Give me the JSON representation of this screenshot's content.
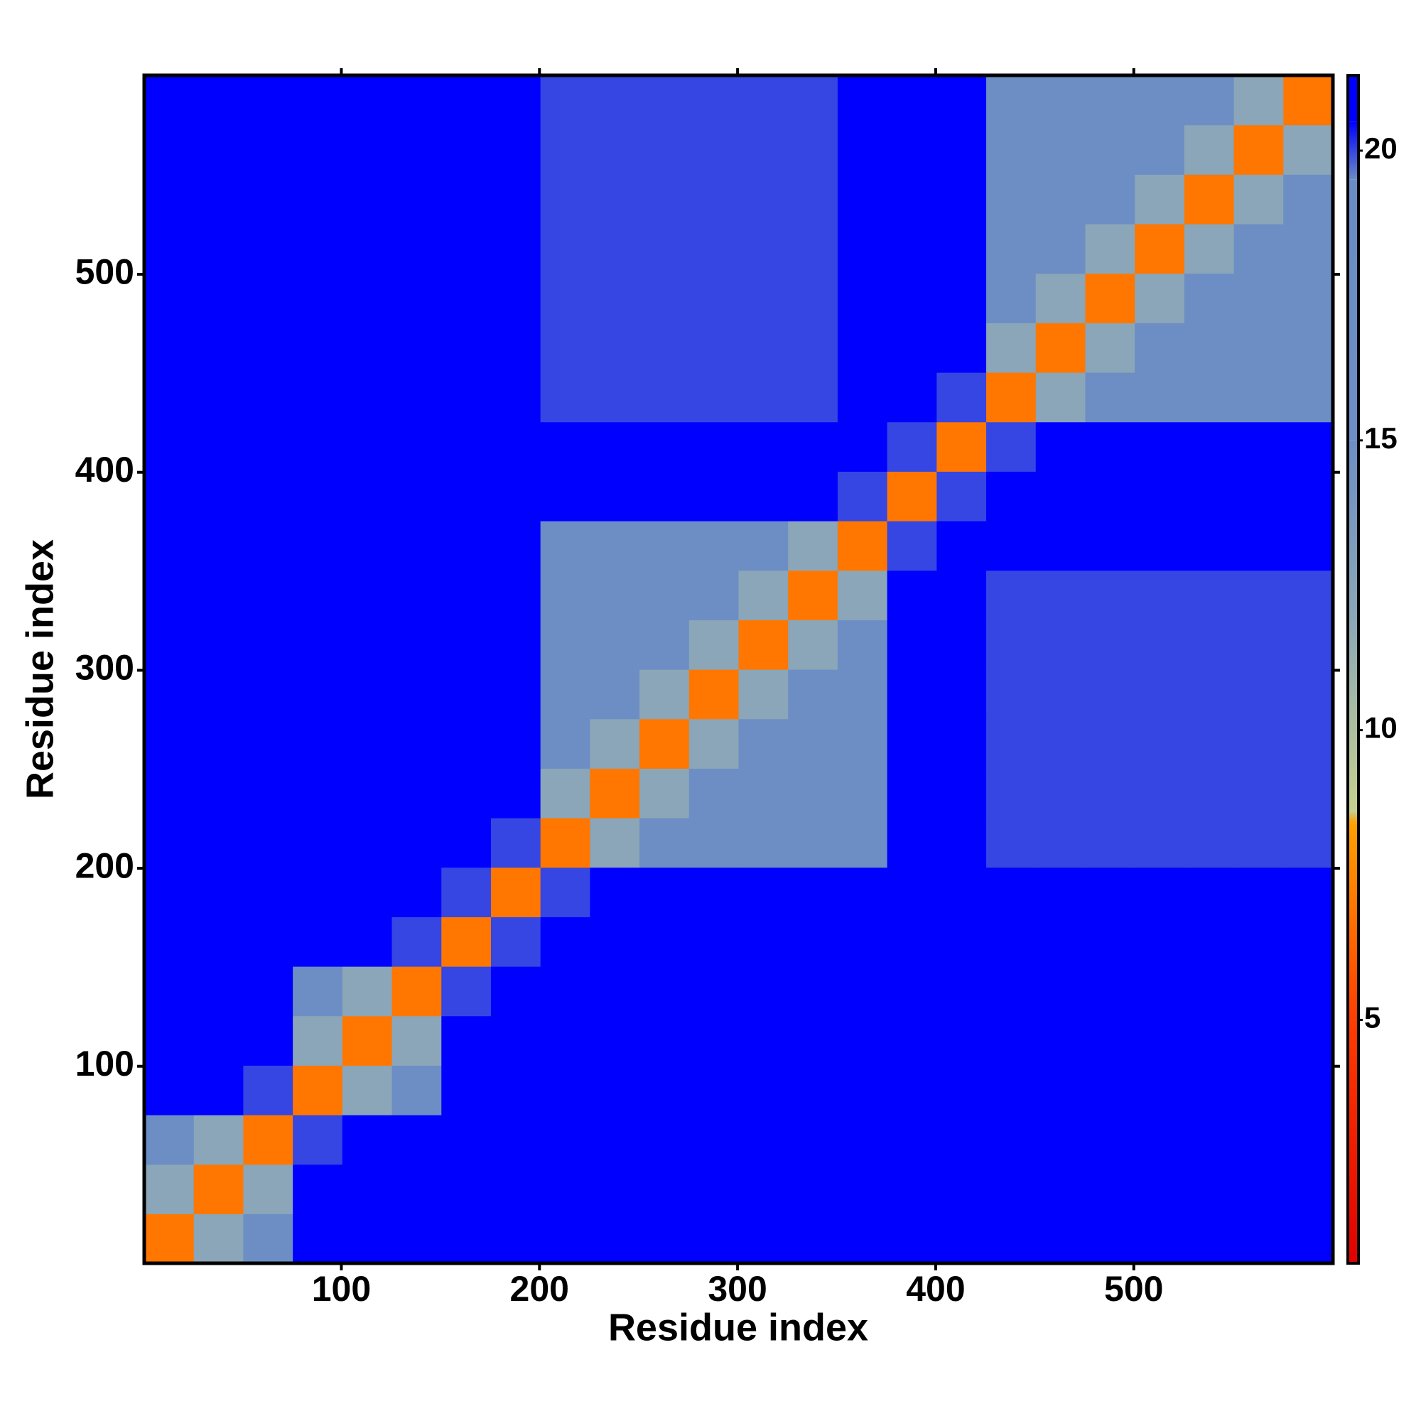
{
  "chart_data": {
    "type": "heatmap",
    "xlabel": "Residue index",
    "ylabel": "Residue index",
    "bins": [
      0.5,
      25.5,
      50.5,
      75.5,
      100.5,
      125.5,
      150.5,
      175.5,
      200.5,
      225.5,
      250.5,
      275.5,
      300.5,
      325.5,
      350.5,
      375.5,
      400.5,
      425.5,
      450.5,
      475.5,
      500.5,
      525.5,
      550.5,
      575.5,
      600.5
    ],
    "xlim": [
      0.5,
      600.5
    ],
    "ylim": [
      0.5,
      600.5
    ],
    "xticks": [
      100,
      200,
      300,
      400,
      500
    ],
    "yticks": [
      100,
      200,
      300,
      400,
      500
    ],
    "clim": [
      0.8,
      21.3
    ],
    "cticks": [
      5,
      10,
      15,
      20
    ],
    "colorscale": [
      [
        0.8,
        "#e00000"
      ],
      [
        5,
        "#ff3c00"
      ],
      [
        8.4,
        "#ffa000"
      ],
      [
        8.6,
        "#c6d08e"
      ],
      [
        12,
        "#8aa6b8"
      ],
      [
        15,
        "#6c8ec4"
      ],
      [
        19.5,
        "#6a8cc6"
      ],
      [
        20.5,
        "#0000ff"
      ],
      [
        21.3,
        "#0000ff"
      ]
    ],
    "values": [
      [
        7,
        12,
        15,
        21,
        21,
        21,
        21,
        21,
        21,
        21,
        21,
        21,
        21,
        21,
        21,
        21,
        21,
        21,
        21,
        21,
        21,
        21,
        21,
        21
      ],
      [
        12,
        7,
        12,
        21,
        21,
        21,
        21,
        21,
        21,
        21,
        21,
        21,
        21,
        21,
        21,
        21,
        21,
        21,
        21,
        21,
        21,
        21,
        21,
        21
      ],
      [
        15,
        12,
        7,
        20,
        21,
        21,
        21,
        21,
        21,
        21,
        21,
        21,
        21,
        21,
        21,
        21,
        21,
        21,
        21,
        21,
        21,
        21,
        21,
        21
      ],
      [
        21,
        21,
        20,
        7,
        12,
        15,
        21,
        21,
        21,
        21,
        21,
        21,
        21,
        21,
        21,
        21,
        21,
        21,
        21,
        21,
        21,
        21,
        21,
        21
      ],
      [
        21,
        21,
        21,
        12,
        7,
        12,
        21,
        21,
        21,
        21,
        21,
        21,
        21,
        21,
        21,
        21,
        21,
        21,
        21,
        21,
        21,
        21,
        21,
        21
      ],
      [
        21,
        21,
        21,
        15,
        12,
        7,
        20,
        21,
        21,
        21,
        21,
        21,
        21,
        21,
        21,
        21,
        21,
        21,
        21,
        21,
        21,
        21,
        21,
        21
      ],
      [
        21,
        21,
        21,
        21,
        21,
        20,
        7,
        20,
        21,
        21,
        21,
        21,
        21,
        21,
        21,
        21,
        21,
        21,
        21,
        21,
        21,
        21,
        21,
        21
      ],
      [
        21,
        21,
        21,
        21,
        21,
        21,
        20,
        7,
        20,
        21,
        21,
        21,
        21,
        21,
        21,
        21,
        21,
        21,
        21,
        21,
        21,
        21,
        21,
        21
      ],
      [
        21,
        21,
        21,
        21,
        21,
        21,
        21,
        20,
        7,
        12,
        15,
        15,
        15,
        15,
        15,
        21,
        21,
        20,
        20,
        20,
        20,
        20,
        20,
        20
      ],
      [
        21,
        21,
        21,
        21,
        21,
        21,
        21,
        21,
        12,
        7,
        12,
        15,
        15,
        15,
        15,
        21,
        21,
        20,
        20,
        20,
        20,
        20,
        20,
        20
      ],
      [
        21,
        21,
        21,
        21,
        21,
        21,
        21,
        21,
        15,
        12,
        7,
        12,
        15,
        15,
        15,
        21,
        21,
        20,
        20,
        20,
        20,
        20,
        20,
        20
      ],
      [
        21,
        21,
        21,
        21,
        21,
        21,
        21,
        21,
        15,
        15,
        12,
        7,
        12,
        15,
        15,
        21,
        21,
        20,
        20,
        20,
        20,
        20,
        20,
        20
      ],
      [
        21,
        21,
        21,
        21,
        21,
        21,
        21,
        21,
        15,
        15,
        15,
        12,
        7,
        12,
        15,
        21,
        21,
        20,
        20,
        20,
        20,
        20,
        20,
        20
      ],
      [
        21,
        21,
        21,
        21,
        21,
        21,
        21,
        21,
        15,
        15,
        15,
        15,
        12,
        7,
        12,
        21,
        21,
        20,
        20,
        20,
        20,
        20,
        20,
        20
      ],
      [
        21,
        21,
        21,
        21,
        21,
        21,
        21,
        21,
        15,
        15,
        15,
        15,
        15,
        12,
        7,
        20,
        21,
        21,
        21,
        21,
        21,
        21,
        21,
        21
      ],
      [
        21,
        21,
        21,
        21,
        21,
        21,
        21,
        21,
        21,
        21,
        21,
        21,
        21,
        21,
        20,
        7,
        20,
        21,
        21,
        21,
        21,
        21,
        21,
        21
      ],
      [
        21,
        21,
        21,
        21,
        21,
        21,
        21,
        21,
        21,
        21,
        21,
        21,
        21,
        21,
        21,
        20,
        7,
        20,
        21,
        21,
        21,
        21,
        21,
        21
      ],
      [
        21,
        21,
        21,
        21,
        21,
        21,
        21,
        21,
        20,
        20,
        20,
        20,
        20,
        20,
        21,
        21,
        20,
        7,
        12,
        15,
        15,
        15,
        15,
        15
      ],
      [
        21,
        21,
        21,
        21,
        21,
        21,
        21,
        21,
        20,
        20,
        20,
        20,
        20,
        20,
        21,
        21,
        21,
        12,
        7,
        12,
        15,
        15,
        15,
        15
      ],
      [
        21,
        21,
        21,
        21,
        21,
        21,
        21,
        21,
        20,
        20,
        20,
        20,
        20,
        20,
        21,
        21,
        21,
        15,
        12,
        7,
        12,
        15,
        15,
        15
      ],
      [
        21,
        21,
        21,
        21,
        21,
        21,
        21,
        21,
        20,
        20,
        20,
        20,
        20,
        20,
        21,
        21,
        21,
        15,
        15,
        12,
        7,
        12,
        15,
        15
      ],
      [
        21,
        21,
        21,
        21,
        21,
        21,
        21,
        21,
        20,
        20,
        20,
        20,
        20,
        20,
        21,
        21,
        21,
        15,
        15,
        15,
        12,
        7,
        12,
        15
      ],
      [
        21,
        21,
        21,
        21,
        21,
        21,
        21,
        21,
        20,
        20,
        20,
        20,
        20,
        20,
        21,
        21,
        21,
        15,
        15,
        15,
        15,
        12,
        7,
        12
      ],
      [
        21,
        21,
        21,
        21,
        21,
        21,
        21,
        21,
        20,
        20,
        20,
        20,
        20,
        20,
        21,
        21,
        21,
        15,
        15,
        15,
        15,
        15,
        12,
        7
      ]
    ]
  }
}
